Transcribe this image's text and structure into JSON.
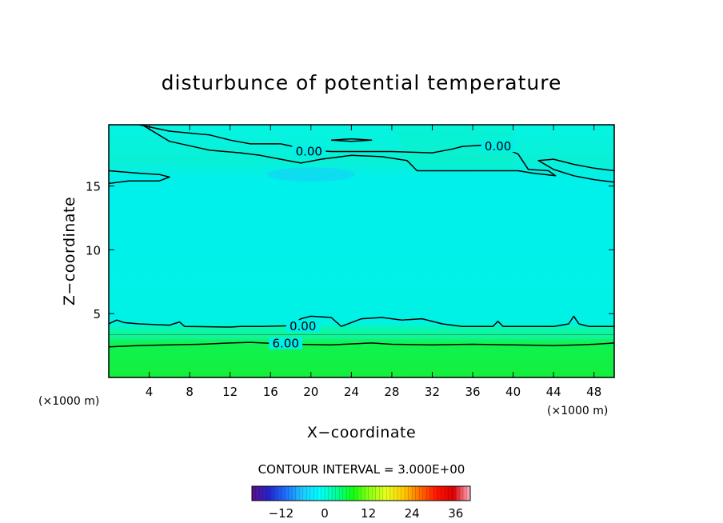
{
  "chart_data": {
    "type": "heatmap",
    "title": "disturbunce of potential temperature",
    "xlabel": "X−coordinate",
    "ylabel": "Z−coordinate",
    "x_unit": "(×1000 m)",
    "y_unit": "(×1000 m)",
    "xlim": [
      0,
      50
    ],
    "ylim": [
      0,
      19.8
    ],
    "x_ticks": [
      4,
      8,
      12,
      16,
      20,
      24,
      28,
      32,
      36,
      40,
      44,
      48
    ],
    "y_ticks": [
      5,
      10,
      15
    ],
    "contour_interval_text": "CONTOUR INTERVAL = 3.000E+00",
    "contour_levels": [
      0,
      6
    ],
    "contour_labels": [
      {
        "text": "0.00",
        "x": 19.2,
        "y": 4.0
      },
      {
        "text": "6.00",
        "x": 17.5,
        "y": 2.65
      },
      {
        "text": "0.00",
        "x": 19.8,
        "y": 17.7
      },
      {
        "text": "0.00",
        "x": 38.5,
        "y": 18.1
      }
    ],
    "contours": [
      {
        "level": 6,
        "points": [
          [
            0,
            2.4
          ],
          [
            3,
            2.5
          ],
          [
            6,
            2.55
          ],
          [
            9,
            2.6
          ],
          [
            12,
            2.7
          ],
          [
            14,
            2.75
          ],
          [
            18,
            2.6
          ],
          [
            22,
            2.55
          ],
          [
            26,
            2.7
          ],
          [
            28,
            2.6
          ],
          [
            32,
            2.55
          ],
          [
            36,
            2.6
          ],
          [
            40,
            2.55
          ],
          [
            44,
            2.5
          ],
          [
            46.5,
            2.55
          ],
          [
            48,
            2.6
          ],
          [
            50,
            2.7
          ]
        ]
      },
      {
        "level": 0,
        "points": [
          [
            0,
            4.2
          ],
          [
            0.8,
            4.5
          ],
          [
            1.5,
            4.3
          ],
          [
            3,
            4.2
          ],
          [
            6,
            4.1
          ],
          [
            7,
            4.35
          ],
          [
            7.5,
            4.0
          ],
          [
            12,
            3.95
          ],
          [
            13,
            4.0
          ],
          [
            15,
            4.0
          ],
          [
            18,
            4.05
          ],
          [
            19,
            4.6
          ],
          [
            20,
            4.8
          ],
          [
            22,
            4.7
          ],
          [
            23,
            4.0
          ],
          [
            25,
            4.6
          ],
          [
            27,
            4.7
          ],
          [
            29,
            4.5
          ],
          [
            31,
            4.6
          ],
          [
            33,
            4.2
          ],
          [
            35,
            4.0
          ],
          [
            38,
            4.0
          ],
          [
            38.5,
            4.4
          ],
          [
            39,
            4.0
          ],
          [
            44,
            4.0
          ],
          [
            45.5,
            4.2
          ],
          [
            46,
            4.8
          ],
          [
            46.5,
            4.2
          ],
          [
            47.5,
            4.0
          ],
          [
            50,
            4.0
          ]
        ]
      },
      {
        "level": 0,
        "points": [
          [
            0,
            16.2
          ],
          [
            3,
            16.0
          ],
          [
            5,
            15.9
          ],
          [
            6,
            15.7
          ],
          [
            5,
            15.4
          ],
          [
            2,
            15.4
          ],
          [
            0,
            15.2
          ]
        ]
      },
      {
        "level": 0,
        "points": [
          [
            3,
            19.8
          ],
          [
            6,
            19.3
          ],
          [
            10,
            19.0
          ],
          [
            12,
            18.6
          ],
          [
            14,
            18.3
          ],
          [
            17,
            18.3
          ],
          [
            20,
            17.8
          ],
          [
            22,
            17.7
          ],
          [
            28,
            17.7
          ],
          [
            32,
            17.6
          ],
          [
            34,
            17.9
          ],
          [
            35,
            18.1
          ],
          [
            37,
            18.2
          ],
          [
            39,
            18.0
          ],
          [
            40.5,
            17.5
          ],
          [
            41.5,
            16.3
          ],
          [
            43.5,
            16.2
          ],
          [
            44.2,
            15.8
          ],
          [
            42,
            16.0
          ],
          [
            40.5,
            16.2
          ],
          [
            39,
            16.2
          ],
          [
            35,
            16.2
          ],
          [
            30.5,
            16.2
          ],
          [
            29.5,
            17.0
          ],
          [
            27,
            17.3
          ],
          [
            24,
            17.4
          ],
          [
            21,
            17.1
          ],
          [
            19,
            16.8
          ],
          [
            17,
            17.1
          ],
          [
            15,
            17.4
          ],
          [
            13,
            17.6
          ],
          [
            10,
            17.8
          ],
          [
            6,
            18.5
          ],
          [
            3.3,
            19.8
          ]
        ]
      },
      {
        "level": 0,
        "points": [
          [
            50,
            15.3
          ],
          [
            48,
            15.5
          ],
          [
            46,
            15.8
          ],
          [
            44,
            16.3
          ],
          [
            42.5,
            17.0
          ],
          [
            44,
            17.1
          ],
          [
            46,
            16.7
          ],
          [
            48,
            16.4
          ],
          [
            50,
            16.2
          ]
        ]
      },
      {
        "level": 0,
        "points": [
          [
            22,
            18.6
          ],
          [
            24,
            18.5
          ],
          [
            26,
            18.6
          ],
          [
            24,
            18.7
          ],
          [
            22,
            18.6
          ]
        ]
      }
    ],
    "colorbar": {
      "range": [
        -20,
        40
      ],
      "ticks": [
        -12,
        0,
        12,
        24,
        36
      ],
      "colors": [
        "#5c0f8a",
        "#2424c8",
        "#1e6eff",
        "#1ec8ff",
        "#00ffff",
        "#00ff9c",
        "#10ff10",
        "#8cff14",
        "#e6ff1e",
        "#ffcd00",
        "#ff6e00",
        "#ff1400",
        "#dc0000",
        "#ffb4c8"
      ]
    },
    "colors": {
      "cool_top": "#00f0f0",
      "mid": "#00f0e4",
      "warm_band": "#10f27a",
      "surface": "#14ef3c",
      "frame": "#000000"
    }
  }
}
